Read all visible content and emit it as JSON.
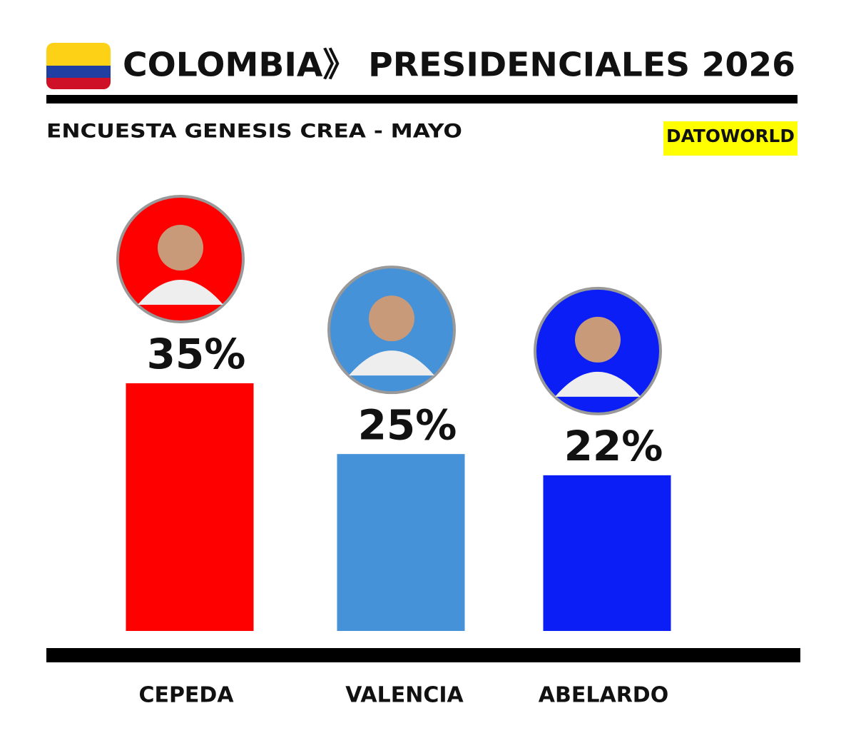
{
  "chart_data": {
    "type": "bar",
    "title": "COLOMBIA》 PRESIDENCIALES 2026",
    "subtitle": "ENCUESTA GENESIS CREA - MAYO",
    "source": "DATOWORLD",
    "categories": [
      "CEPEDA",
      "VALENCIA",
      "ABELARDO"
    ],
    "values": [
      35,
      25,
      22
    ],
    "value_labels": [
      "35%",
      "25%",
      "22%"
    ],
    "colors": [
      "#ff0000",
      "#4592d9",
      "#0a1ef5"
    ]
  }
}
